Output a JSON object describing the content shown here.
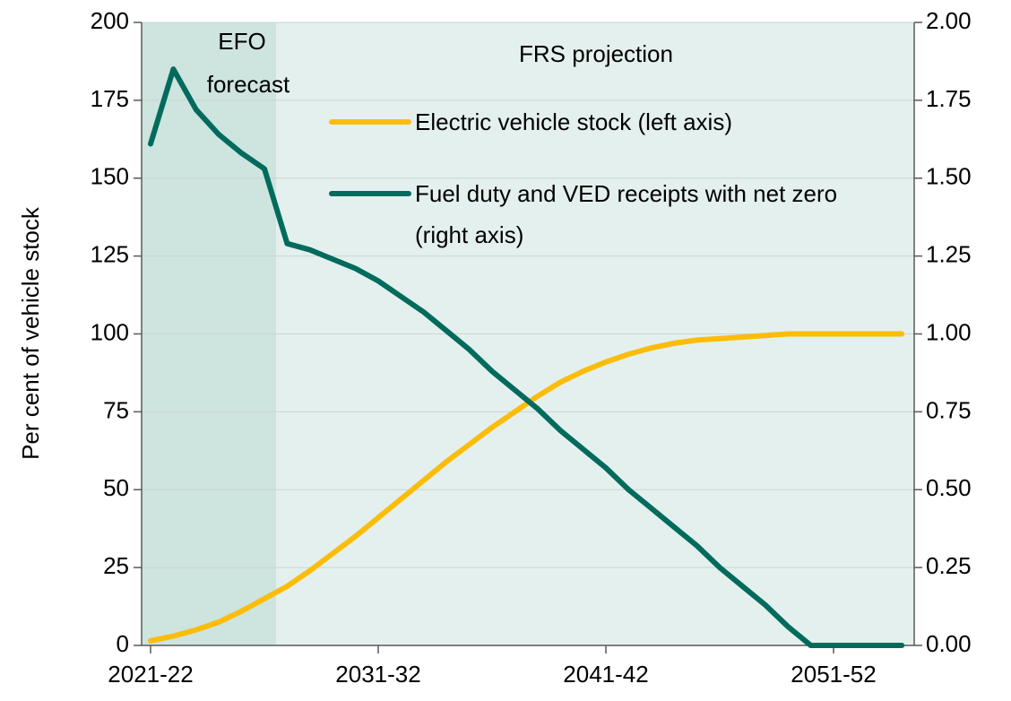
{
  "chart_data": {
    "type": "line",
    "y_label": "Per cent of vehicle stock",
    "annotations": [
      "EFO",
      "forecast",
      "FRS projection"
    ],
    "categories": [
      "2021-22",
      null,
      null,
      null,
      null,
      null,
      null,
      null,
      null,
      null,
      "2031-32",
      null,
      null,
      null,
      null,
      null,
      null,
      null,
      null,
      null,
      "2041-42",
      null,
      null,
      null,
      null,
      null,
      null,
      null,
      null,
      null,
      "2051-52",
      null,
      null,
      null
    ],
    "series": [
      {
        "name": "Electric vehicle stock (left axis)",
        "color": "#fbbd0a",
        "axis": "y",
        "values": [
          1.5,
          3,
          5,
          7.5,
          11,
          15,
          19,
          24,
          29.5,
          35,
          41,
          47,
          53,
          59,
          64.5,
          70,
          75,
          80,
          84.5,
          88,
          91,
          93.5,
          95.5,
          97,
          98,
          98.5,
          99,
          99.5,
          100,
          100,
          100,
          100,
          100,
          100
        ]
      },
      {
        "name": "Fuel duty and VED receipts with net zero (right axis)",
        "color": "#006b5d",
        "axis": "y2",
        "values": [
          1.61,
          1.85,
          1.72,
          1.64,
          1.58,
          1.53,
          1.29,
          1.27,
          1.24,
          1.21,
          1.17,
          1.12,
          1.07,
          1.01,
          0.95,
          0.88,
          0.82,
          0.76,
          0.69,
          0.63,
          0.57,
          0.5,
          0.44,
          0.38,
          0.32,
          0.25,
          0.19,
          0.13,
          0.06,
          0,
          0,
          0,
          0,
          0
        ]
      }
    ],
    "ylim": [
      0,
      200
    ],
    "yticks": [
      0,
      25,
      50,
      75,
      100,
      125,
      150,
      175,
      200
    ],
    "y2lim": [
      0,
      2
    ],
    "y2ticks": [
      {
        "value": 0,
        "label": "0.00"
      },
      {
        "value": 0.25,
        "label": "0.25"
      },
      {
        "value": 0.5,
        "label": "0.50"
      },
      {
        "value": 0.75,
        "label": "0.75"
      },
      {
        "value": 1,
        "label": "1.00"
      },
      {
        "value": 1.25,
        "label": "1.25"
      },
      {
        "value": 1.5,
        "label": "1.50"
      },
      {
        "value": 1.75,
        "label": "1.75"
      },
      {
        "value": 2,
        "label": "2.00"
      }
    ],
    "grid": true
  }
}
